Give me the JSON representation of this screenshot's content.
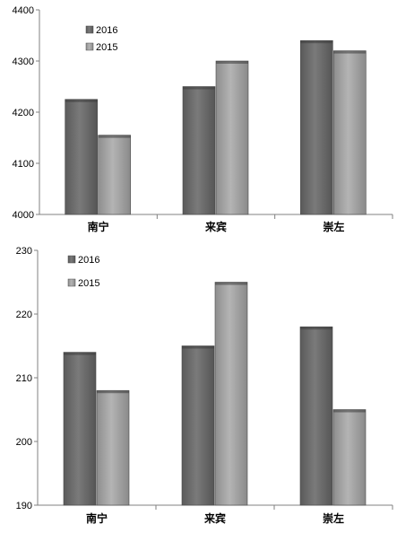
{
  "chart_data": [
    {
      "type": "bar",
      "categories": [
        "南宁",
        "来宾",
        "崇左"
      ],
      "series": [
        {
          "name": "2016",
          "values": [
            4225,
            4250,
            4340
          ]
        },
        {
          "name": "2015",
          "values": [
            4155,
            4300,
            4320
          ]
        }
      ],
      "ylim": [
        4000,
        4400
      ],
      "yticks": [
        4000,
        4100,
        4200,
        4300,
        4400
      ],
      "grid": false,
      "legend": "top-left",
      "colors": {
        "2016": "#6e6e6e",
        "2015": "#a6a6a6"
      }
    },
    {
      "type": "bar",
      "categories": [
        "南宁",
        "来宾",
        "崇左"
      ],
      "series": [
        {
          "name": "2016",
          "values": [
            214,
            215,
            218
          ]
        },
        {
          "name": "2015",
          "values": [
            208,
            225,
            205
          ]
        }
      ],
      "ylim": [
        190,
        230
      ],
      "yticks": [
        190,
        200,
        210,
        220,
        230
      ],
      "grid": false,
      "legend": "top-left",
      "colors": {
        "2016": "#6e6e6e",
        "2015": "#a6a6a6"
      }
    }
  ]
}
